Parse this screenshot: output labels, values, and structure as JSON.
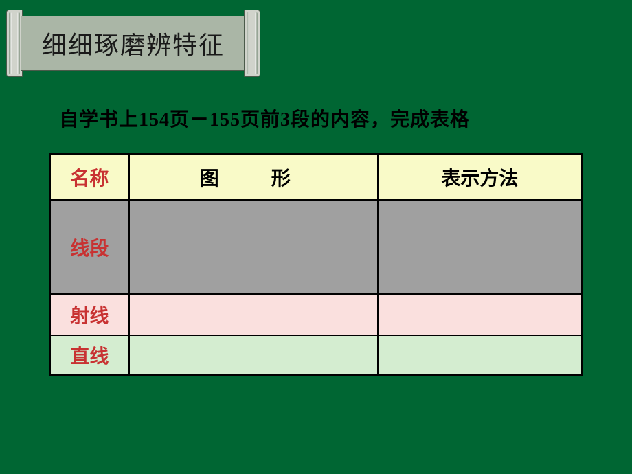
{
  "banner": {
    "title": "细细琢磨辨特征"
  },
  "instruction": "自学书上154页－155页前3段的内容，完成表格",
  "table": {
    "headers": {
      "name": "名称",
      "shape": "图　形",
      "method": "表示方法"
    },
    "rows": {
      "segment": {
        "label": "线段",
        "shape": "",
        "method": ""
      },
      "ray": {
        "label": "射线",
        "shape": "",
        "method": ""
      },
      "line": {
        "label": "直线",
        "shape": "",
        "method": ""
      }
    },
    "colors": {
      "page_background": "#006633",
      "banner_body": "#aab6a6",
      "banner_scroll": "#d0d3cb",
      "header_bg": "#f9fac8",
      "segment_bg": "#a0a0a0",
      "ray_bg": "#fae0de",
      "line_bg": "#d4edd0",
      "label_color": "#c83232",
      "text_color": "#000000",
      "border_color": "#000000"
    },
    "column_widths": {
      "name": 115,
      "shape": 363,
      "method": 298
    },
    "row_heights": {
      "header": 67,
      "segment": 137,
      "ray": 60,
      "line": 58
    },
    "font_size": 28,
    "font_weight": "bold"
  }
}
